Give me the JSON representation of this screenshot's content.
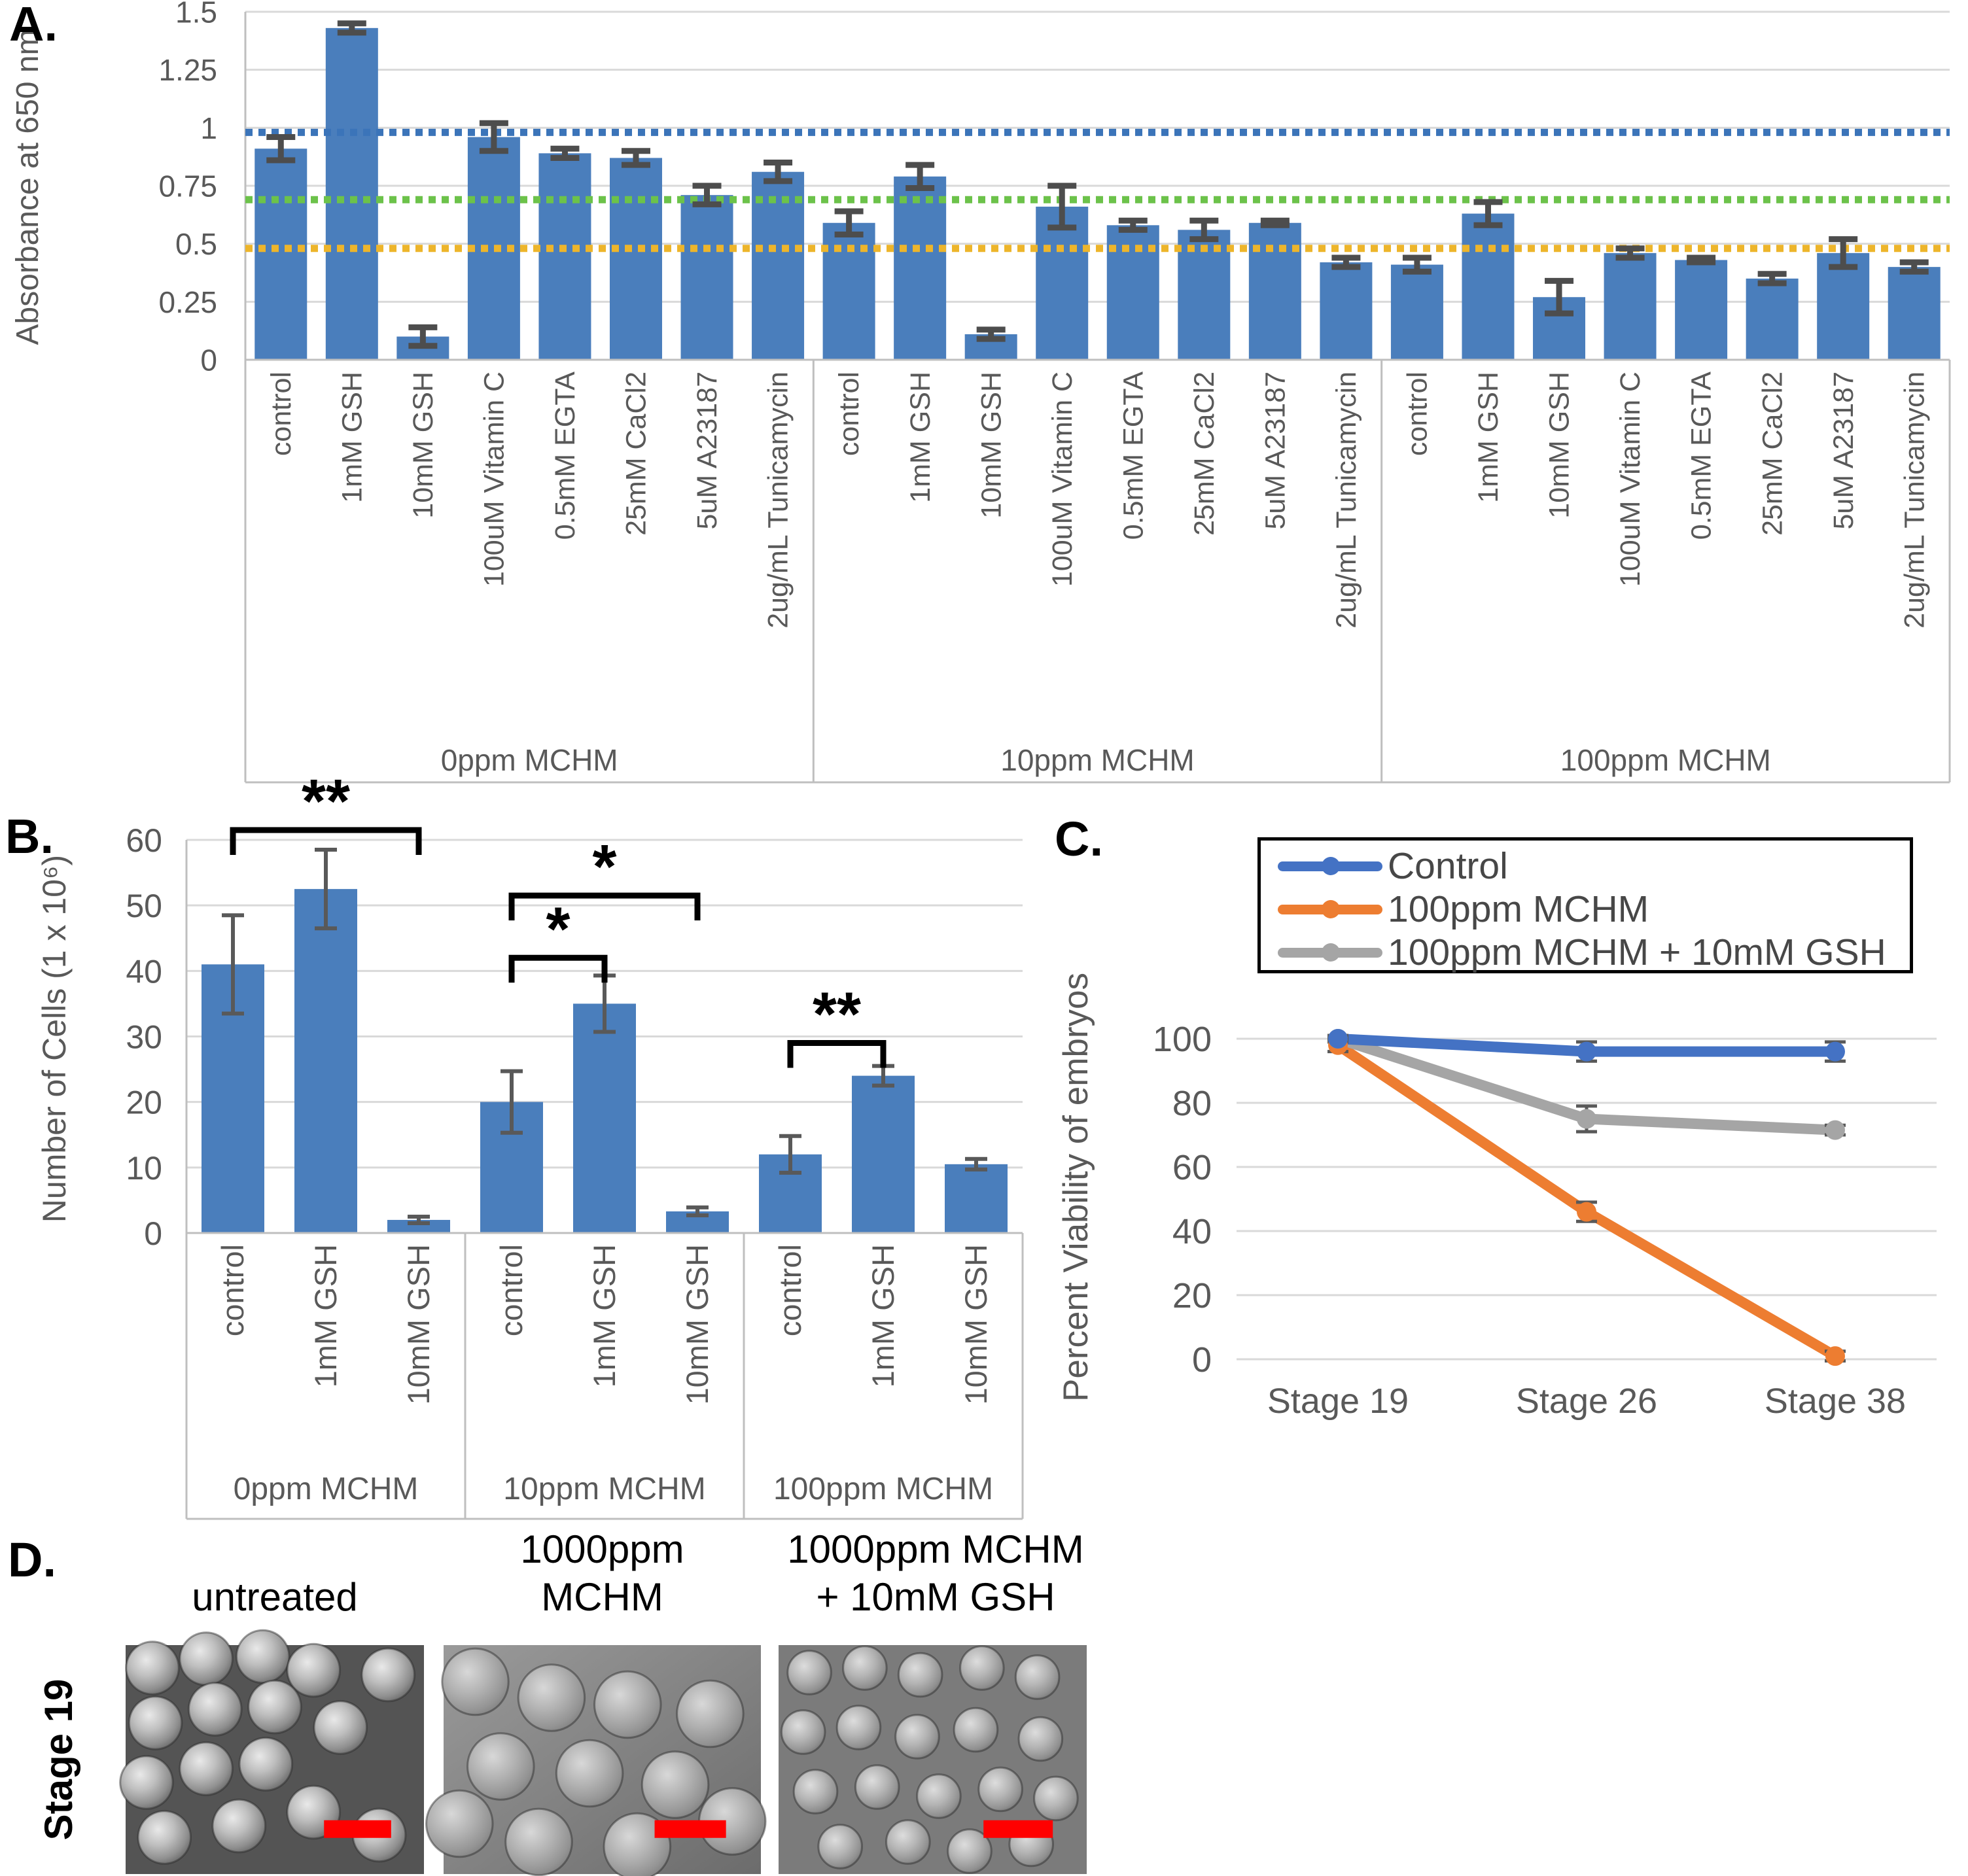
{
  "panels": {
    "a": {
      "letter": "A."
    },
    "b": {
      "letter": "B."
    },
    "c": {
      "letter": "C."
    },
    "d": {
      "letter": "D."
    }
  },
  "chart_data": [
    {
      "type": "bar",
      "panel": "A",
      "title": "",
      "xlabel": "",
      "ylabel": "Absorbance at 650 nm",
      "ylim": [
        0,
        1.5
      ],
      "ytick_values": [
        0,
        0.25,
        0.5,
        0.75,
        1,
        1.25,
        1.5
      ],
      "grid": true,
      "bar_color": "#4A7EBC",
      "categories": [
        "control",
        "1mM GSH",
        "10mM GSH",
        "100uM Vitamin C",
        "0.5mM EGTA",
        "25mM CaCl2",
        "5uM A23187",
        "2ug/mL Tunicamycin"
      ],
      "groups": [
        {
          "label": "0ppm MCHM",
          "values": [
            0.91,
            1.43,
            0.1,
            0.96,
            0.89,
            0.87,
            0.71,
            0.81
          ],
          "errors": [
            0.05,
            0.02,
            0.04,
            0.06,
            0.02,
            0.03,
            0.04,
            0.04
          ]
        },
        {
          "label": "10ppm MCHM",
          "values": [
            0.59,
            0.79,
            0.11,
            0.66,
            0.58,
            0.56,
            0.59,
            0.42
          ],
          "errors": [
            0.05,
            0.05,
            0.02,
            0.09,
            0.02,
            0.04,
            0.01,
            0.02
          ]
        },
        {
          "label": "100ppm MCHM",
          "values": [
            0.41,
            0.63,
            0.27,
            0.46,
            0.43,
            0.35,
            0.46,
            0.4
          ],
          "errors": [
            0.03,
            0.05,
            0.07,
            0.02,
            0.01,
            0.02,
            0.06,
            0.02
          ]
        }
      ],
      "reference_lines": [
        {
          "name": "blue-dotted",
          "value": 0.98,
          "color": "#3B74B9"
        },
        {
          "name": "green-dotted",
          "value": 0.69,
          "color": "#6CC24A"
        },
        {
          "name": "yellow-dotted",
          "value": 0.48,
          "color": "#EDB52B"
        }
      ]
    },
    {
      "type": "bar",
      "panel": "B",
      "title": "",
      "xlabel": "",
      "ylabel": "Number of Cells (1 x 10⁶)",
      "ylim": [
        0,
        60
      ],
      "ytick_values": [
        0,
        10,
        20,
        30,
        40,
        50,
        60
      ],
      "grid": true,
      "bar_color": "#4A7EBC",
      "categories": [
        "control",
        "1mM GSH",
        "10mM GSH"
      ],
      "groups": [
        {
          "label": "0ppm MCHM",
          "values": [
            41,
            52.5,
            2
          ],
          "errors": [
            7.5,
            6,
            0.5
          ]
        },
        {
          "label": "10ppm MCHM",
          "values": [
            20,
            35,
            3.3
          ],
          "errors": [
            4.7,
            4.3,
            0.6
          ]
        },
        {
          "label": "100ppm MCHM",
          "values": [
            12,
            24,
            10.5
          ],
          "errors": [
            2.8,
            1.5,
            0.8
          ]
        }
      ],
      "significance": [
        {
          "group": 0,
          "from": 0,
          "to": 2,
          "label": "**",
          "height": 61.5
        },
        {
          "group": 1,
          "from": 0,
          "to": 1,
          "label": "*",
          "height": 42
        },
        {
          "group": 1,
          "from": 0,
          "to": 2,
          "label": "*",
          "height": 51.5
        },
        {
          "group": 2,
          "from": 0,
          "to": 1,
          "label": "**",
          "height": 29
        }
      ]
    },
    {
      "type": "line",
      "panel": "C",
      "title": "",
      "xlabel": "",
      "ylabel": "Percent Viability of embryos",
      "ylim": [
        0,
        100
      ],
      "ytick_values": [
        0,
        20,
        40,
        60,
        80,
        100
      ],
      "grid": true,
      "legend_position": "top",
      "categories": [
        "Stage 19",
        "Stage 26",
        "Stage 38"
      ],
      "series": [
        {
          "name": "Control",
          "color": "#4472C4",
          "values": [
            100,
            96,
            96
          ],
          "errors": [
            1,
            3,
            3
          ]
        },
        {
          "name": "100ppm MCHM",
          "color": "#ED7D31",
          "values": [
            98,
            46,
            1
          ],
          "errors": [
            2,
            3,
            1.5
          ]
        },
        {
          "name": "100ppm MCHM + 10mM GSH",
          "color": "#A5A5A5",
          "values": [
            100,
            75,
            71.5
          ],
          "errors": [
            1,
            4,
            1.5
          ]
        }
      ]
    }
  ],
  "panel_d": {
    "row_label": "Stage 19",
    "scalebar_color": "#FF0000",
    "columns": [
      {
        "line1": "",
        "line2": "untreated"
      },
      {
        "line1": "1000ppm",
        "line2": "MCHM"
      },
      {
        "line1": "1000ppm MCHM",
        "line2": "+ 10mM GSH"
      }
    ]
  }
}
